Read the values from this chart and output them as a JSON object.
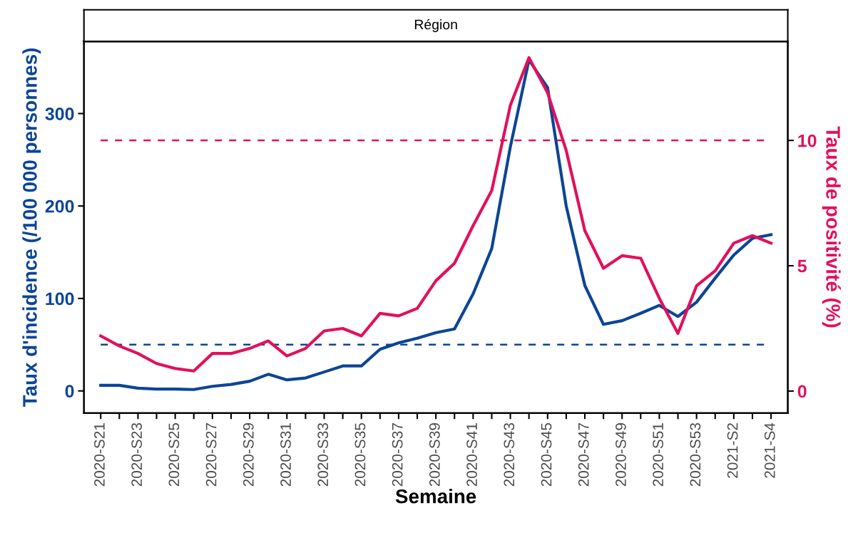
{
  "chart_data": {
    "type": "line",
    "title": "Région",
    "xlabel": "Semaine",
    "ylabel": "Taux d'incidence (/100 000 personnes)",
    "y2label": "Taux de positivité (%)",
    "categories": [
      "2020-S21",
      null,
      "2020-S23",
      null,
      "2020-S25",
      null,
      "2020-S27",
      null,
      "2020-S29",
      null,
      "2020-S31",
      null,
      "2020-S33",
      null,
      "2020-S35",
      null,
      "2020-S37",
      null,
      "2020-S39",
      null,
      "2020-S41",
      null,
      "2020-S43",
      null,
      "2020-S45",
      null,
      "2020-S47",
      null,
      "2020-S49",
      null,
      "2020-S51",
      null,
      "2020-S53",
      null,
      "2021-S2",
      null,
      "2021-S4"
    ],
    "series": [
      {
        "color": "#0b4596",
        "values": [
          6,
          6,
          3,
          2,
          2,
          1.5,
          5,
          7,
          10.5,
          18,
          12,
          14,
          20.5,
          27,
          27,
          45,
          52,
          57,
          63,
          67,
          105,
          154,
          264,
          358,
          328,
          200,
          114,
          72,
          76,
          84,
          92.5,
          80.5,
          96,
          122,
          147,
          165,
          169
        ]
      },
      {
        "color": "#e2105c",
        "axis": "y2",
        "values": [
          2.2,
          1.8,
          1.5,
          1.1,
          0.9,
          0.8,
          1.5,
          1.5,
          1.7,
          2.0,
          1.4,
          1.7,
          2.4,
          2.5,
          2.2,
          3.1,
          3.0,
          3.3,
          4.4,
          5.1,
          6.6,
          8.0,
          11.4,
          13.3,
          11.9,
          9.6,
          6.4,
          4.9,
          5.4,
          5.3,
          3.7,
          2.3,
          4.2,
          4.8,
          5.9,
          6.2,
          5.9
        ]
      }
    ],
    "ylim": [
      -24,
      378
    ],
    "yticks": [
      0,
      100,
      200,
      300
    ],
    "y2lim": [
      -0.88,
      13.95
    ],
    "y2ticks": [
      0,
      5,
      10
    ],
    "ref_lines": [
      {
        "axis": "y",
        "value": 50,
        "color": "#0b4596",
        "line_style": "dashed"
      },
      {
        "axis": "y2",
        "value": 10,
        "color": "#e2105c",
        "line_style": "dashed"
      }
    ],
    "grid": false,
    "line_style": "solid"
  }
}
